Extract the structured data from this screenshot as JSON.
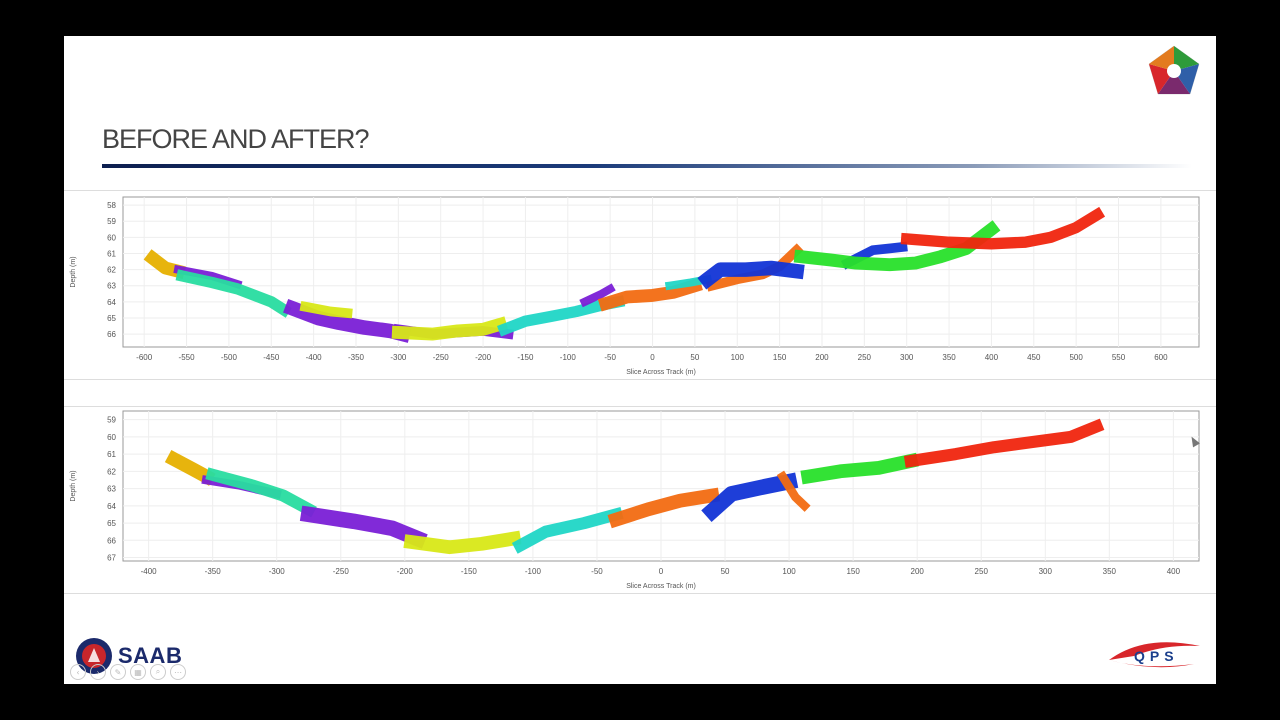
{
  "slide": {
    "title": "BEFORE AND AFTER?"
  },
  "logos": {
    "left_brand": "SAAB",
    "right_brand": "QPS"
  },
  "colors": {
    "title_rule": "#0d1f4f",
    "segment_palette": [
      "#e6b000",
      "#7a1fd6",
      "#28dca0",
      "#d8e817",
      "#20d6c6",
      "#f26b12",
      "#1234d6",
      "#28e02a",
      "#f0250e"
    ]
  },
  "chart_data": [
    {
      "type": "scatter",
      "title": "",
      "xlabel": "Slice Across Track (m)",
      "ylabel": "Depth (m)",
      "xlim": [
        -625,
        645
      ],
      "ylim": [
        57.5,
        66.8
      ],
      "y_inverted": true,
      "grid": true,
      "xticks": [
        -600,
        -550,
        -500,
        -450,
        -400,
        -350,
        -300,
        -250,
        -200,
        -150,
        -100,
        -50,
        0,
        50,
        100,
        150,
        200,
        250,
        300,
        350,
        400,
        450,
        500,
        550,
        600
      ],
      "yticks": [
        58,
        59,
        60,
        61,
        62,
        63,
        64,
        65,
        66
      ],
      "series": [
        {
          "color": "#e6b000",
          "thickness": 0.8,
          "points": [
            [
              -590,
              61.3
            ],
            [
              -575,
              61.9
            ],
            [
              -560,
              62.1
            ]
          ]
        },
        {
          "color": "#7a1fd6",
          "thickness": 0.5,
          "points": [
            [
              -560,
              62.0
            ],
            [
              -520,
              62.4
            ],
            [
              -490,
              62.9
            ]
          ]
        },
        {
          "color": "#28dca0",
          "thickness": 0.7,
          "points": [
            [
              -555,
              62.4
            ],
            [
              -520,
              62.8
            ],
            [
              -490,
              63.2
            ],
            [
              -450,
              64.0
            ],
            [
              -435,
              64.5
            ]
          ]
        },
        {
          "color": "#7a1fd6",
          "thickness": 0.9,
          "points": [
            [
              -425,
              64.4
            ],
            [
              -395,
              65.0
            ],
            [
              -370,
              65.3
            ],
            [
              -340,
              65.6
            ],
            [
              -310,
              65.8
            ],
            [
              -295,
              66.0
            ]
          ]
        },
        {
          "color": "#d8e817",
          "thickness": 0.6,
          "points": [
            [
              -410,
              64.3
            ],
            [
              -380,
              64.6
            ],
            [
              -360,
              64.7
            ]
          ]
        },
        {
          "color": "#7a1fd6",
          "thickness": 0.6,
          "points": [
            [
              -300,
              65.7
            ],
            [
              -260,
              66.0
            ],
            [
              -230,
              65.9
            ],
            [
              -200,
              65.8
            ],
            [
              -170,
              66.0
            ]
          ]
        },
        {
          "color": "#d8e817",
          "thickness": 0.8,
          "points": [
            [
              -300,
              65.9
            ],
            [
              -260,
              66.0
            ],
            [
              -230,
              65.8
            ],
            [
              -200,
              65.7
            ],
            [
              -180,
              65.4
            ]
          ]
        },
        {
          "color": "#20d6c6",
          "thickness": 0.7,
          "points": [
            [
              -175,
              65.7
            ],
            [
              -150,
              65.2
            ],
            [
              -120,
              64.9
            ],
            [
              -90,
              64.6
            ],
            [
              -60,
              64.2
            ],
            [
              -40,
              64.0
            ]
          ]
        },
        {
          "color": "#7a1fd6",
          "thickness": 0.5,
          "points": [
            [
              -80,
              64.0
            ],
            [
              -60,
              63.5
            ],
            [
              -50,
              63.2
            ]
          ]
        },
        {
          "color": "#f26b12",
          "thickness": 0.8,
          "points": [
            [
              -55,
              64.1
            ],
            [
              -30,
              63.7
            ],
            [
              0,
              63.6
            ],
            [
              25,
              63.4
            ],
            [
              50,
              63.0
            ]
          ]
        },
        {
          "color": "#20d6c6",
          "thickness": 0.5,
          "points": [
            [
              20,
              63.0
            ],
            [
              45,
              62.8
            ],
            [
              65,
              62.6
            ]
          ]
        },
        {
          "color": "#f26b12",
          "thickness": 0.6,
          "points": [
            [
              70,
              63.0
            ],
            [
              100,
              62.6
            ],
            [
              130,
              62.3
            ],
            [
              150,
              61.8
            ],
            [
              170,
              60.8
            ]
          ]
        },
        {
          "color": "#1234d6",
          "thickness": 0.9,
          "points": [
            [
              65,
              62.6
            ],
            [
              80,
              62.0
            ],
            [
              110,
              62.0
            ],
            [
              140,
              61.9
            ],
            [
              170,
              62.1
            ]
          ]
        },
        {
          "color": "#1234d6",
          "thickness": 0.6,
          "points": [
            [
              230,
              61.6
            ],
            [
              260,
              60.8
            ],
            [
              295,
              60.6
            ]
          ]
        },
        {
          "color": "#28e02a",
          "thickness": 0.8,
          "points": [
            [
              175,
              61.2
            ],
            [
              210,
              61.4
            ],
            [
              240,
              61.6
            ],
            [
              280,
              61.7
            ],
            [
              310,
              61.6
            ],
            [
              340,
              61.2
            ],
            [
              370,
              60.7
            ],
            [
              400,
              59.5
            ]
          ]
        },
        {
          "color": "#f0250e",
          "thickness": 0.7,
          "points": [
            [
              300,
              60.1
            ],
            [
              350,
              60.3
            ],
            [
              400,
              60.4
            ],
            [
              440,
              60.3
            ],
            [
              470,
              60.0
            ],
            [
              500,
              59.4
            ],
            [
              525,
              58.6
            ]
          ]
        }
      ]
    },
    {
      "type": "scatter",
      "title": "",
      "xlabel": "Slice Across Track (m)",
      "ylabel": "Depth (m)",
      "xlim": [
        -420,
        420
      ],
      "ylim": [
        58.5,
        67.2
      ],
      "y_inverted": true,
      "grid": true,
      "xticks": [
        -400,
        -350,
        -300,
        -250,
        -200,
        -150,
        -100,
        -50,
        0,
        50,
        100,
        150,
        200,
        250,
        300,
        350,
        400
      ],
      "yticks": [
        59,
        60,
        61,
        62,
        63,
        64,
        65,
        66,
        67
      ],
      "series": [
        {
          "color": "#e6b000",
          "thickness": 0.8,
          "points": [
            [
              -380,
              61.3
            ],
            [
              -365,
              61.9
            ],
            [
              -355,
              62.3
            ]
          ]
        },
        {
          "color": "#7a1fd6",
          "thickness": 0.5,
          "points": [
            [
              -355,
              62.5
            ],
            [
              -330,
              62.8
            ],
            [
              -300,
              63.3
            ]
          ]
        },
        {
          "color": "#28dca0",
          "thickness": 0.7,
          "points": [
            [
              -350,
              62.2
            ],
            [
              -320,
              62.8
            ],
            [
              -295,
              63.4
            ],
            [
              -275,
              64.2
            ]
          ]
        },
        {
          "color": "#7a1fd6",
          "thickness": 0.9,
          "points": [
            [
              -275,
              64.5
            ],
            [
              -240,
              64.9
            ],
            [
              -210,
              65.3
            ],
            [
              -190,
              65.9
            ]
          ]
        },
        {
          "color": "#d8e817",
          "thickness": 0.8,
          "points": [
            [
              -195,
              66.1
            ],
            [
              -165,
              66.4
            ],
            [
              -140,
              66.2
            ],
            [
              -115,
              65.9
            ]
          ]
        },
        {
          "color": "#20d6c6",
          "thickness": 0.7,
          "points": [
            [
              -110,
              66.3
            ],
            [
              -90,
              65.5
            ],
            [
              -60,
              65.0
            ],
            [
              -35,
              64.5
            ]
          ]
        },
        {
          "color": "#f26b12",
          "thickness": 0.8,
          "points": [
            [
              -35,
              64.8
            ],
            [
              -10,
              64.2
            ],
            [
              15,
              63.7
            ],
            [
              40,
              63.4
            ]
          ]
        },
        {
          "color": "#1234d6",
          "thickness": 0.9,
          "points": [
            [
              40,
              64.3
            ],
            [
              55,
              63.3
            ],
            [
              80,
              62.9
            ],
            [
              100,
              62.6
            ]
          ]
        },
        {
          "color": "#f26b12",
          "thickness": 0.5,
          "points": [
            [
              95,
              62.3
            ],
            [
              105,
              63.5
            ],
            [
              112,
              64.0
            ]
          ]
        },
        {
          "color": "#28e02a",
          "thickness": 0.8,
          "points": [
            [
              115,
              62.3
            ],
            [
              140,
              62.0
            ],
            [
              170,
              61.8
            ],
            [
              195,
              61.4
            ]
          ]
        },
        {
          "color": "#f0250e",
          "thickness": 0.7,
          "points": [
            [
              195,
              61.4
            ],
            [
              230,
              61.0
            ],
            [
              260,
              60.6
            ],
            [
              290,
              60.3
            ],
            [
              320,
              60.0
            ],
            [
              340,
              59.4
            ]
          ]
        }
      ]
    }
  ]
}
